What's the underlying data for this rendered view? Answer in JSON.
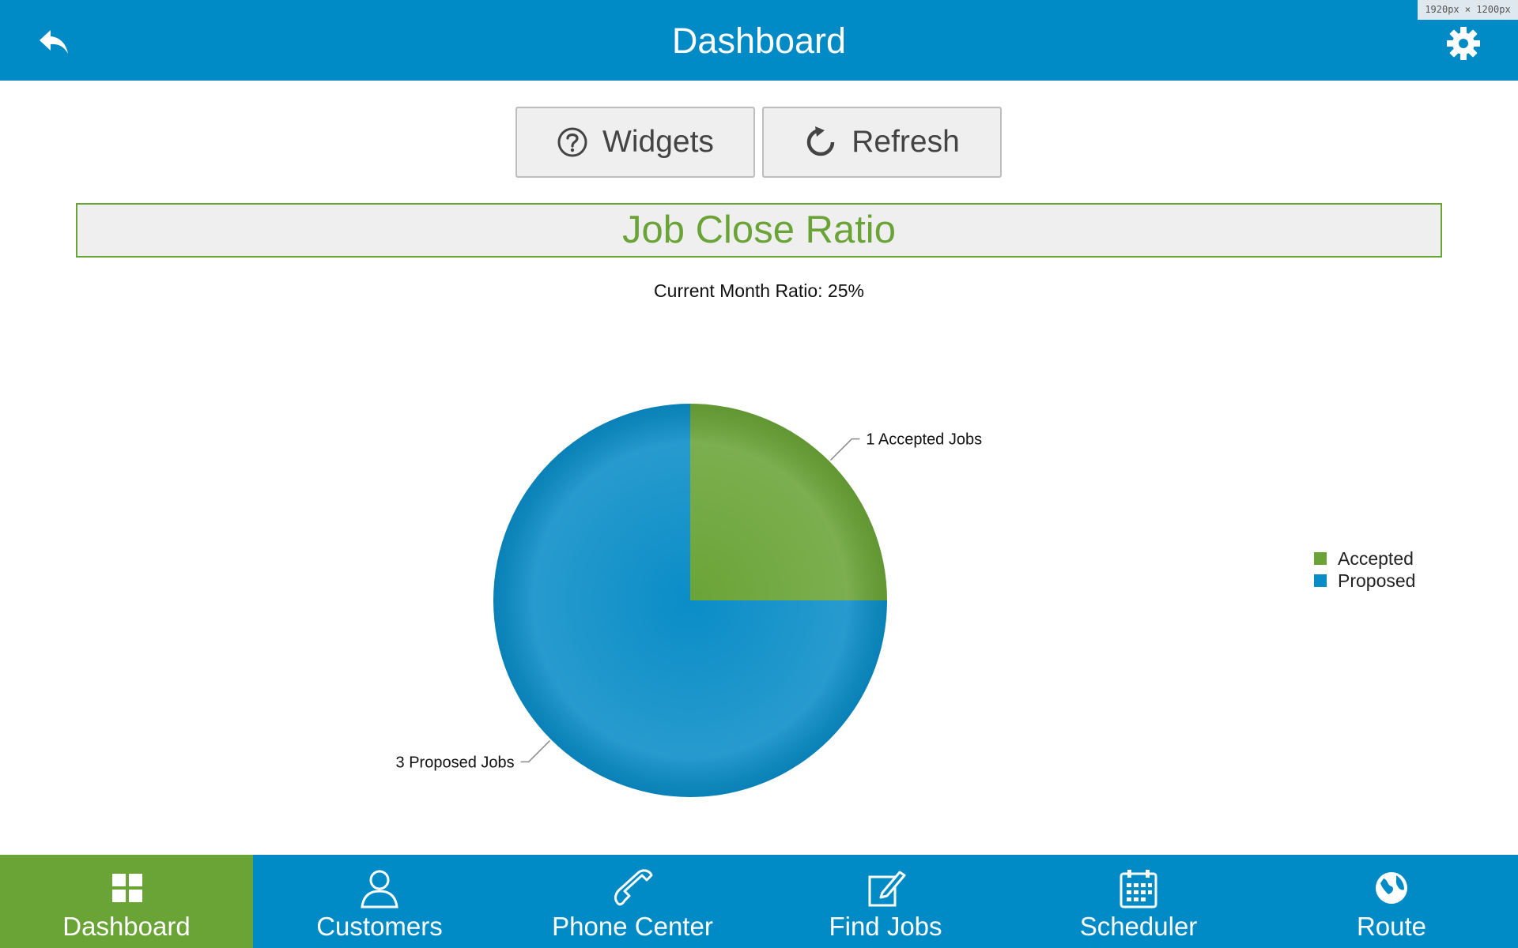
{
  "header": {
    "title": "Dashboard",
    "back_icon": "back-arrow-icon",
    "settings_icon": "gear-icon",
    "color": "#008bc6"
  },
  "dimension_badge": "1920px × 1200px",
  "toolbar": {
    "widgets_label": "Widgets",
    "refresh_label": "Refresh"
  },
  "widget": {
    "title": "Job Close Ratio",
    "subtitle": "Current Month Ratio: 25%",
    "title_color": "#6aa437"
  },
  "chart_data": {
    "type": "pie",
    "categories": [
      "Accepted",
      "Proposed"
    ],
    "values": [
      1,
      3
    ],
    "colors": [
      "#6aa437",
      "#0a8dc7"
    ],
    "data_labels": [
      "1 Accepted Jobs",
      "3 Proposed Jobs"
    ],
    "legend": [
      "Accepted",
      "Proposed"
    ],
    "legend_placement": "right"
  },
  "nav": {
    "items": [
      {
        "label": "Dashboard",
        "icon": "dashboard-grid-icon",
        "active": true
      },
      {
        "label": "Customers",
        "icon": "person-icon",
        "active": false
      },
      {
        "label": "Phone Center",
        "icon": "phone-icon",
        "active": false
      },
      {
        "label": "Find Jobs",
        "icon": "edit-note-icon",
        "active": false
      },
      {
        "label": "Scheduler",
        "icon": "calendar-icon",
        "active": false
      },
      {
        "label": "Route",
        "icon": "globe-icon",
        "active": false
      }
    ],
    "active_color": "#6aa437"
  }
}
